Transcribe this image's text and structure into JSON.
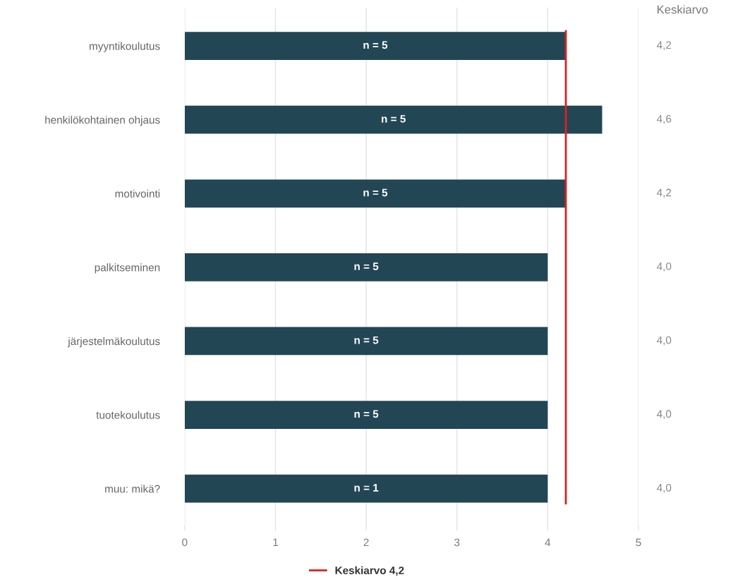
{
  "chart_data": {
    "type": "bar",
    "orientation": "horizontal",
    "categories": [
      "myyntikoulutus",
      "henkilökohtainen ohjaus",
      "motivointi",
      "palkitseminen",
      "järjestelmäkoulutus",
      "tuotekoulutus",
      "muu: mikä?"
    ],
    "values": [
      4.2,
      4.6,
      4.2,
      4.0,
      4.0,
      4.0,
      4.0
    ],
    "value_labels": [
      "4,2",
      "4,6",
      "4,2",
      "4,0",
      "4,0",
      "4,0",
      "4,0"
    ],
    "color": "#234655",
    "xlim": [
      0,
      5
    ],
    "xticks": [
      0,
      1,
      2,
      3,
      4,
      5
    ],
    "grid": "x",
    "ref_lines": [
      {
        "axis": "x",
        "value": 4.2,
        "label": "Keskiarvo 4,2",
        "color": "#e02020"
      }
    ],
    "legend": "bottom",
    "annotations": [
      "Keskiarvo",
      "n = 5",
      "n = 5",
      "n = 5",
      "n = 5",
      "n = 5",
      "n = 5",
      "n = 1"
    ]
  }
}
